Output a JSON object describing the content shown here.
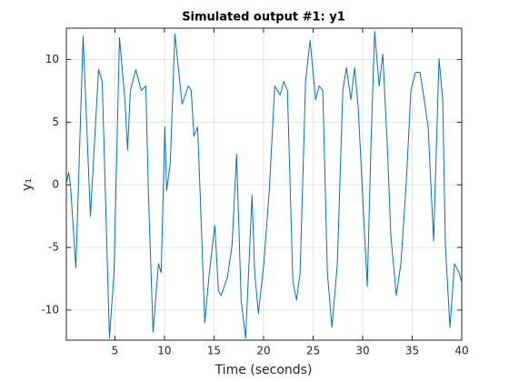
{
  "chart_data": {
    "type": "line",
    "title": "Simulated output #1: y1",
    "x_label": "Time (seconds)",
    "y_label": "y₁",
    "x": [
      0.14,
      0.33,
      0.51,
      1.06,
      1.79,
      2.53,
      3.35,
      3.72,
      4.45,
      4.91,
      5.46,
      6.01,
      6.28,
      6.56,
      7.11,
      7.66,
      8.12,
      8.39,
      8.85,
      9.4,
      9.67,
      10.04,
      10.22,
      10.59,
      11.05,
      11.78,
      12.42,
      12.7,
      12.97,
      13.34,
      13.61,
      14.07,
      14.53,
      15.08,
      15.45,
      15.72,
      16.36,
      16.82,
      17.28,
      17.74,
      18.19,
      18.84,
      19.11,
      19.48,
      20.03,
      20.58,
      21.13,
      21.68,
      22.04,
      22.41,
      22.96,
      23.33,
      23.69,
      24.24,
      24.7,
      25.25,
      25.62,
      25.98,
      26.44,
      26.9,
      27.45,
      28.0,
      28.36,
      28.82,
      29.19,
      29.56,
      30.11,
      30.47,
      30.84,
      31.21,
      31.67,
      32.03,
      32.49,
      32.85,
      33.4,
      33.86,
      34.41,
      34.87,
      35.33,
      35.79,
      36.15,
      36.61,
      37.16,
      37.71,
      38.08,
      38.35,
      38.81,
      39.27,
      39.73,
      40.0
    ],
    "series": [
      {
        "name": "y1",
        "color": "#0072bd",
        "values": [
          0.25,
          0.98,
          0.04,
          -6.65,
          11.89,
          -2.51,
          9.2,
          8.25,
          -12.25,
          -7.02,
          11.75,
          6.8,
          2.8,
          7.53,
          9.2,
          7.53,
          7.89,
          -0.84,
          -11.75,
          -6.29,
          -7.02,
          4.62,
          -0.47,
          1.71,
          12.04,
          6.44,
          7.89,
          7.53,
          3.89,
          4.62,
          -0.84,
          -11.02,
          -7.02,
          -3.24,
          -8.47,
          -8.84,
          -7.38,
          -4.84,
          2.44,
          -9.2,
          -12.25,
          -0.84,
          -7.02,
          -10.29,
          -6.29,
          -0.47,
          7.89,
          7.16,
          8.25,
          7.53,
          -7.75,
          -9.2,
          -7.02,
          8.25,
          11.53,
          6.8,
          7.89,
          7.53,
          -7.02,
          -11.38,
          -6.29,
          7.53,
          9.35,
          6.8,
          9.35,
          6.07,
          -2.65,
          -8.11,
          3.16,
          12.25,
          7.89,
          10.44,
          3.16,
          -4.11,
          -8.84,
          -6.29,
          0.25,
          7.53,
          8.98,
          8.98,
          7.16,
          4.62,
          -4.47,
          10.07,
          6.8,
          -4.84,
          -11.38,
          -6.29,
          -7.02,
          -7.75
        ]
      }
    ],
    "xlim": [
      0.1,
      40
    ],
    "ylim": [
      -12.4,
      12.5
    ],
    "xticks": [
      5,
      10,
      15,
      20,
      25,
      30,
      35,
      40
    ],
    "yticks": [
      -10,
      -5,
      0,
      5,
      10
    ],
    "grid": true
  }
}
